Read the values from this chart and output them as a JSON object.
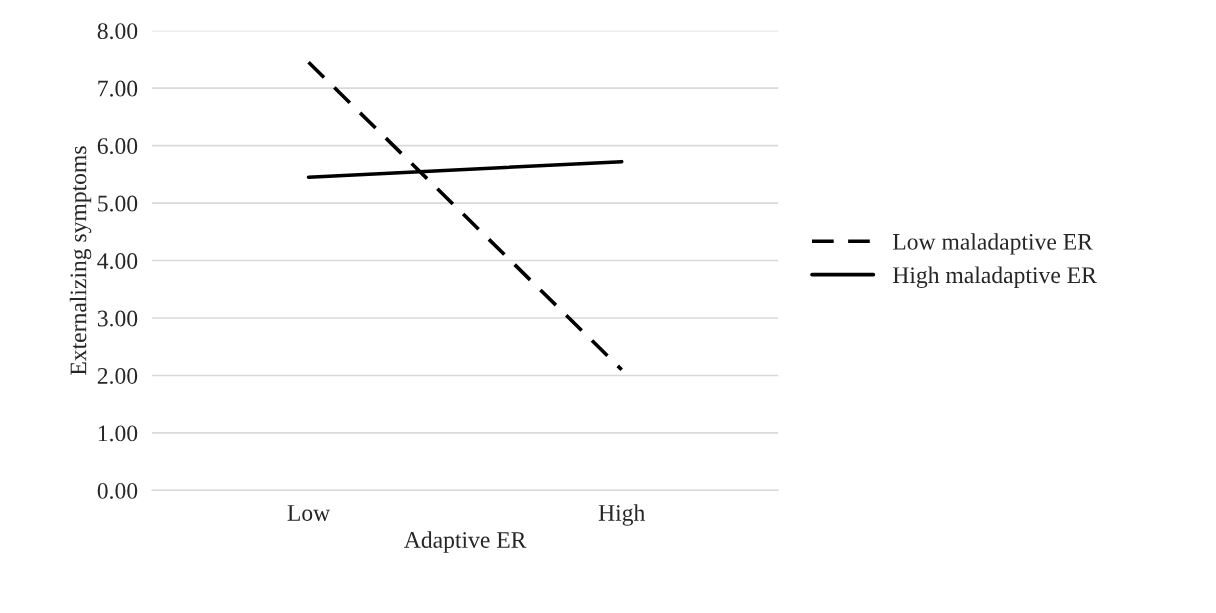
{
  "chart_data": {
    "type": "line",
    "xlabel": "Adaptive ER",
    "ylabel": "Externalizing symptoms",
    "categories": [
      "Low",
      "High"
    ],
    "series": [
      {
        "name": "Low maladaptive ER",
        "color": "#000000",
        "values": [
          7.45,
          2.1
        ],
        "line_style": "dashed"
      },
      {
        "name": "High maladaptive ER",
        "color": "#000000",
        "values": [
          5.45,
          5.72
        ],
        "line_style": "solid"
      }
    ],
    "ylim": [
      0,
      8
    ],
    "yticks": [
      {
        "value": 0,
        "label": "0.00"
      },
      {
        "value": 1,
        "label": "1.00"
      },
      {
        "value": 2,
        "label": "2.00"
      },
      {
        "value": 3,
        "label": "3.00"
      },
      {
        "value": 4,
        "label": "4.00"
      },
      {
        "value": 5,
        "label": "5.00"
      },
      {
        "value": 6,
        "label": "6.00"
      },
      {
        "value": 7,
        "label": "7.00"
      },
      {
        "value": 8,
        "label": "8.00"
      }
    ],
    "grid": "y",
    "legend": "right",
    "marker": "none"
  }
}
